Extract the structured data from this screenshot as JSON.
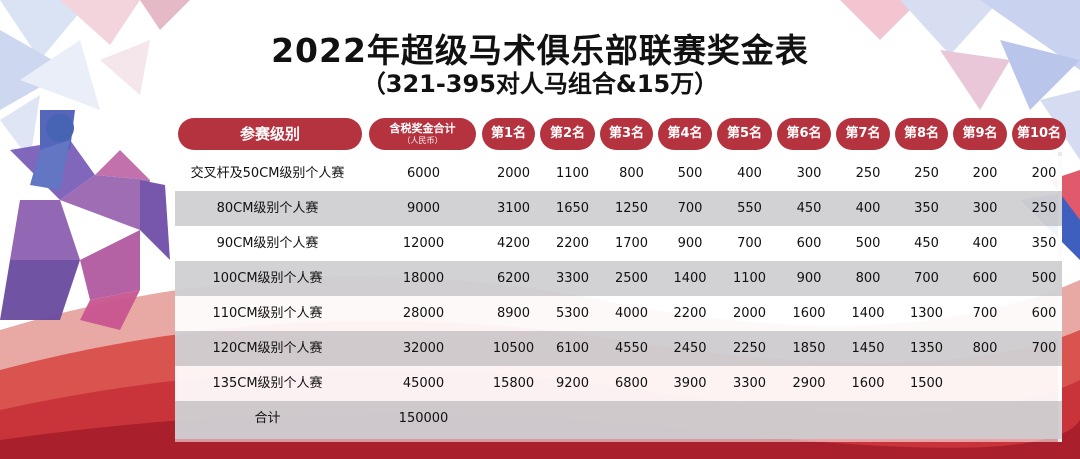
{
  "title": "2022年超级马术俱乐部联赛奖金表",
  "subtitle": "（321-395对人马组合&15万）",
  "headers": {
    "category": "参赛级别",
    "total_line1": "含税奖金合计",
    "total_line2": "（人民币）",
    "places": [
      "第1名",
      "第2名",
      "第3名",
      "第4名",
      "第5名",
      "第6名",
      "第7名",
      "第8名",
      "第9名",
      "第10名"
    ]
  },
  "rows": [
    {
      "label": "交叉杆及50CM级别个人赛",
      "total": "6000",
      "prizes": [
        "2000",
        "1100",
        "800",
        "500",
        "400",
        "300",
        "250",
        "250",
        "200",
        "200"
      ]
    },
    {
      "label": "80CM级别个人赛",
      "total": "9000",
      "prizes": [
        "3100",
        "1650",
        "1250",
        "700",
        "550",
        "450",
        "400",
        "350",
        "300",
        "250"
      ]
    },
    {
      "label": "90CM级别个人赛",
      "total": "12000",
      "prizes": [
        "4200",
        "2200",
        "1700",
        "900",
        "700",
        "600",
        "500",
        "450",
        "400",
        "350"
      ]
    },
    {
      "label": "100CM级别个人赛",
      "total": "18000",
      "prizes": [
        "6200",
        "3300",
        "2500",
        "1400",
        "1100",
        "900",
        "800",
        "700",
        "600",
        "500"
      ]
    },
    {
      "label": "110CM级别个人赛",
      "total": "28000",
      "prizes": [
        "8900",
        "5300",
        "4000",
        "2200",
        "2000",
        "1600",
        "1400",
        "1300",
        "700",
        "600"
      ]
    },
    {
      "label": "120CM级别个人赛",
      "total": "32000",
      "prizes": [
        "10500",
        "6100",
        "4550",
        "2450",
        "2250",
        "1850",
        "1450",
        "1350",
        "800",
        "700"
      ]
    },
    {
      "label": "135CM级别个人赛",
      "total": "45000",
      "prizes": [
        "15800",
        "9200",
        "6800",
        "3900",
        "3300",
        "2900",
        "1600",
        "1500",
        "",
        ""
      ]
    },
    {
      "label": "合计",
      "total": "150000",
      "prizes": [
        "",
        "",
        "",
        "",
        "",
        "",
        "",
        "",
        "",
        ""
      ]
    }
  ],
  "colors": {
    "header_red": "#b5323f",
    "row_shade": "#cdcdd0"
  }
}
